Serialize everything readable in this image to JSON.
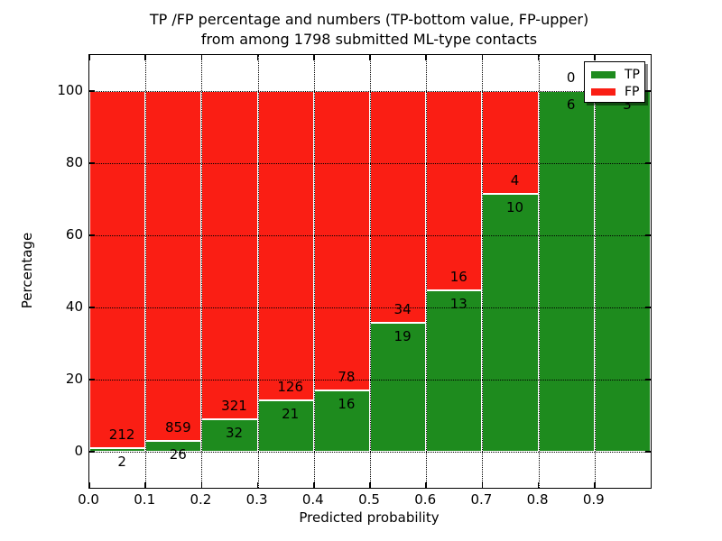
{
  "title": {
    "line1": "TP /FP percentage and numbers (TP-bottom value, FP-upper)",
    "line2": "from among 1798 submitted ML-type contacts"
  },
  "chart_data": {
    "type": "bar",
    "stacked": true,
    "normalized_to_percent": true,
    "title": "TP /FP percentage and numbers (TP-bottom value, FP-upper) from among 1798 submitted ML-type contacts",
    "xlabel": "Predicted probability",
    "ylabel": "Percentage",
    "total_contacts": 1798,
    "xlim": [
      0.0,
      1.0
    ],
    "ylim": [
      -10,
      110
    ],
    "x_ticks": [
      0.0,
      0.1,
      0.2,
      0.3,
      0.4,
      0.5,
      0.6,
      0.7,
      0.8,
      0.9
    ],
    "y_ticks": [
      0,
      20,
      40,
      60,
      80,
      100
    ],
    "grid": true,
    "categories": [
      "0.0-0.1",
      "0.1-0.2",
      "0.2-0.3",
      "0.3-0.4",
      "0.4-0.5",
      "0.5-0.6",
      "0.6-0.7",
      "0.7-0.8",
      "0.8-0.9",
      "0.9-1.0"
    ],
    "series": [
      {
        "name": "TP",
        "color": "#1e8b1e",
        "values": [
          2,
          26,
          32,
          21,
          16,
          19,
          13,
          10,
          6,
          3
        ]
      },
      {
        "name": "FP",
        "color": "#fa1e14",
        "values": [
          212,
          859,
          321,
          126,
          78,
          34,
          16,
          4,
          0,
          0
        ]
      }
    ],
    "bins": [
      {
        "x0": 0.0,
        "x1": 0.1,
        "tp": 2,
        "fp": 212
      },
      {
        "x0": 0.1,
        "x1": 0.2,
        "tp": 26,
        "fp": 859
      },
      {
        "x0": 0.2,
        "x1": 0.3,
        "tp": 32,
        "fp": 321
      },
      {
        "x0": 0.3,
        "x1": 0.4,
        "tp": 21,
        "fp": 126
      },
      {
        "x0": 0.4,
        "x1": 0.5,
        "tp": 16,
        "fp": 78
      },
      {
        "x0": 0.5,
        "x1": 0.6,
        "tp": 19,
        "fp": 34
      },
      {
        "x0": 0.6,
        "x1": 0.7,
        "tp": 13,
        "fp": 16
      },
      {
        "x0": 0.7,
        "x1": 0.8,
        "tp": 10,
        "fp": 4
      },
      {
        "x0": 0.8,
        "x1": 0.9,
        "tp": 6,
        "fp": 0
      },
      {
        "x0": 0.9,
        "x1": 1.0,
        "tp": 3,
        "fp": 0
      }
    ],
    "legend": {
      "position": "upper right",
      "entries": [
        {
          "label": "TP",
          "color": "#1e8b1e"
        },
        {
          "label": "FP",
          "color": "#fa1e14"
        }
      ]
    }
  }
}
